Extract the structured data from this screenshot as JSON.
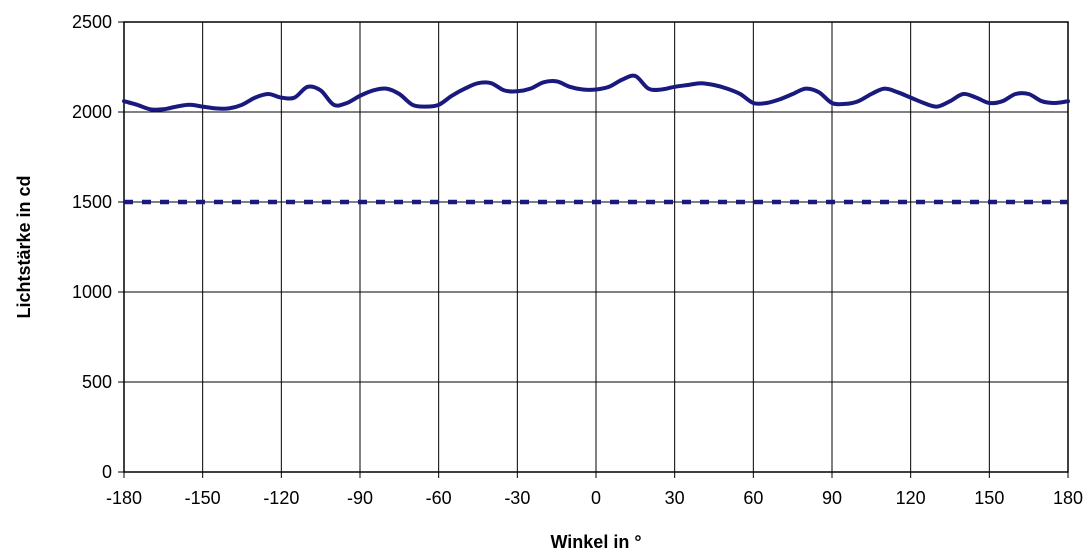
{
  "chart_data": {
    "type": "line",
    "title": "",
    "xlabel": "Winkel in °",
    "ylabel": "Lichtstärke in cd",
    "xlim": [
      -180,
      180
    ],
    "ylim": [
      0,
      2500
    ],
    "xticks": [
      -180,
      -150,
      -120,
      -90,
      -60,
      -30,
      0,
      30,
      60,
      90,
      120,
      150,
      180
    ],
    "yticks": [
      0,
      500,
      1000,
      1500,
      2000,
      2500
    ],
    "grid": true,
    "legend": "none",
    "series": [
      {
        "style": "solid",
        "color": "#1a1a7e",
        "x": [
          -180,
          -175,
          -170,
          -165,
          -160,
          -155,
          -150,
          -145,
          -140,
          -135,
          -130,
          -125,
          -120,
          -115,
          -110,
          -105,
          -100,
          -95,
          -90,
          -85,
          -80,
          -75,
          -70,
          -65,
          -60,
          -55,
          -50,
          -45,
          -40,
          -35,
          -30,
          -25,
          -20,
          -15,
          -10,
          -5,
          0,
          5,
          10,
          15,
          20,
          25,
          30,
          35,
          40,
          45,
          50,
          55,
          60,
          65,
          70,
          75,
          80,
          85,
          90,
          95,
          100,
          105,
          110,
          115,
          120,
          125,
          130,
          135,
          140,
          145,
          150,
          155,
          160,
          165,
          170,
          175,
          180
        ],
        "y": [
          2060,
          2040,
          2015,
          2015,
          2030,
          2040,
          2030,
          2020,
          2020,
          2040,
          2080,
          2100,
          2080,
          2080,
          2140,
          2120,
          2040,
          2050,
          2090,
          2120,
          2130,
          2100,
          2040,
          2030,
          2040,
          2090,
          2130,
          2160,
          2160,
          2120,
          2115,
          2130,
          2165,
          2170,
          2140,
          2125,
          2125,
          2140,
          2180,
          2200,
          2130,
          2125,
          2140,
          2150,
          2160,
          2150,
          2130,
          2100,
          2050,
          2050,
          2070,
          2100,
          2130,
          2110,
          2050,
          2045,
          2060,
          2100,
          2130,
          2110,
          2080,
          2050,
          2030,
          2060,
          2100,
          2080,
          2050,
          2060,
          2100,
          2100,
          2060,
          2050,
          2060
        ]
      },
      {
        "style": "dashed",
        "color": "#1a1a7e",
        "x": [
          -180,
          180
        ],
        "y": [
          1500,
          1500
        ]
      }
    ]
  }
}
